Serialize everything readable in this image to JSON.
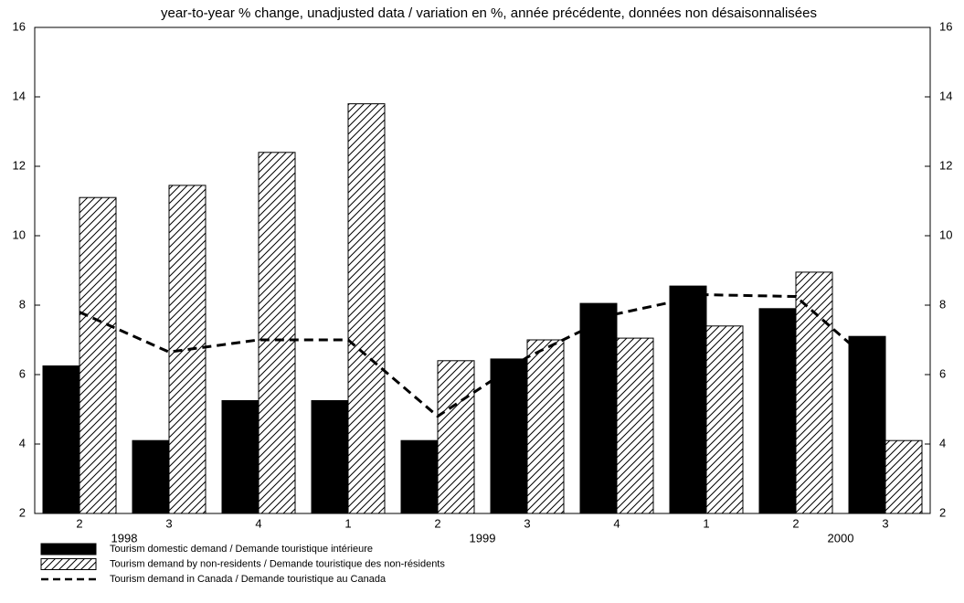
{
  "chart_data": {
    "type": "bar",
    "title": "year-to-year % change, unadjusted data / variation en %, année précédente, données non désaisonnalisées",
    "categories": [
      "2",
      "3",
      "4",
      "1",
      "2",
      "3",
      "4",
      "1",
      "2",
      "3"
    ],
    "years": [
      "1998",
      null,
      null,
      null,
      "1999",
      null,
      null,
      null,
      "2000",
      null
    ],
    "series": [
      {
        "name": "Tourism domestic demand / Demande touristique intérieure",
        "type": "bar",
        "color": "#000000",
        "hatch": false,
        "values": [
          6.25,
          4.1,
          5.25,
          5.25,
          4.1,
          6.45,
          8.05,
          8.55,
          7.9,
          7.1
        ]
      },
      {
        "name": "Tourism demand by non-residents / Demande touristique des non-résidents",
        "type": "bar",
        "color": "#000000",
        "hatch": true,
        "values": [
          11.1,
          11.45,
          12.4,
          13.8,
          6.4,
          7.0,
          7.05,
          7.4,
          8.95,
          4.1
        ]
      },
      {
        "name": "Tourism demand in Canada / Demande touristique au Canada",
        "type": "line",
        "color": "#000000",
        "dashed": true,
        "values": [
          7.8,
          6.65,
          7.0,
          7.0,
          4.8,
          6.5,
          7.75,
          8.3,
          8.25,
          6.0
        ]
      }
    ],
    "ylim": [
      2,
      16
    ],
    "yticks": [
      2,
      4,
      6,
      8,
      10,
      12,
      14,
      16
    ],
    "y2lim": [
      2,
      16
    ],
    "y2ticks": [
      2,
      4,
      6,
      8,
      10,
      12,
      14,
      16
    ],
    "grid": false
  }
}
